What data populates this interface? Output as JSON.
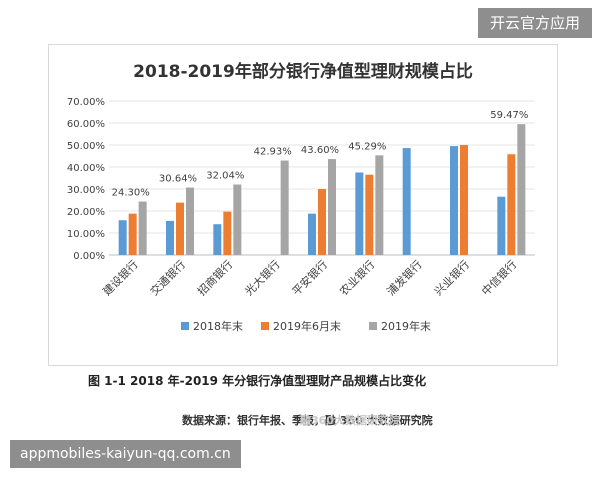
{
  "overlay_top": "开云官方应用",
  "overlay_bottom": "appmobiles-kaiyun-qq.com.cn",
  "caption": "图 1-1  2018 年-2019 年分银行净值型理财产品规模占比变化",
  "source": "数据来源：银行年报、季报，融 360 大数据研究院",
  "watermark": "融360大数据研究院",
  "chart_data": {
    "type": "bar",
    "title": "2018-2019年部分银行净值型理财规模占比",
    "categories": [
      "建设银行",
      "交通银行",
      "招商银行",
      "光大银行",
      "平安银行",
      "农业银行",
      "浦发银行",
      "兴业银行",
      "中信银行"
    ],
    "series": [
      {
        "name": "2018年末",
        "color": "#5b9bd5",
        "values": [
          15.8,
          15.5,
          14.0,
          null,
          18.8,
          37.5,
          48.6,
          49.5,
          26.5
        ]
      },
      {
        "name": "2019年6月末",
        "color": "#ed7d31",
        "values": [
          18.8,
          23.8,
          19.7,
          null,
          30.0,
          36.5,
          null,
          50.0,
          45.8
        ]
      },
      {
        "name": "2019年末",
        "color": "#a5a5a5",
        "values": [
          24.3,
          30.64,
          32.04,
          42.93,
          43.6,
          45.29,
          null,
          null,
          59.47
        ]
      }
    ],
    "data_labels": [
      "24.30%",
      "30.64%",
      "32.04%",
      "42.93%",
      "43.60%",
      "45.29%",
      null,
      null,
      "59.47%"
    ],
    "y_ticks": [
      "0.00%",
      "10.00%",
      "20.00%",
      "30.00%",
      "40.00%",
      "50.00%",
      "60.00%",
      "70.00%"
    ],
    "ylim": [
      0,
      70
    ],
    "grid": true,
    "legend_position": "bottom"
  }
}
